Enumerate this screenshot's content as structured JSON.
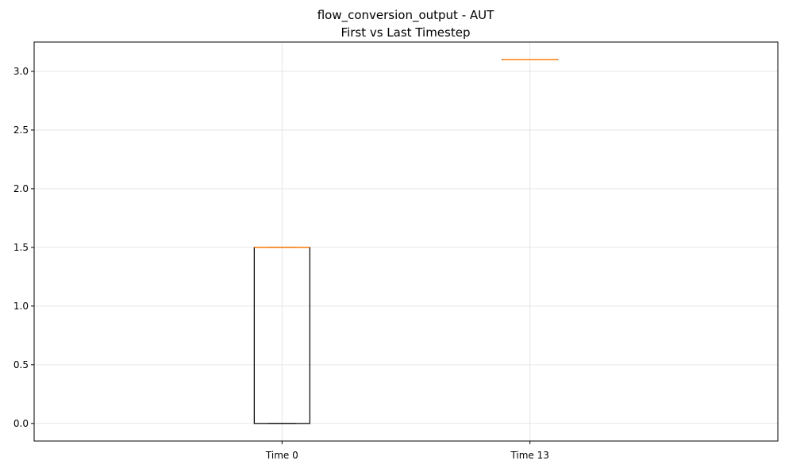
{
  "chart_data": {
    "type": "box",
    "title": "flow_conversion_output - AUT",
    "subtitle": "First vs Last Timestep",
    "xlabel": "",
    "ylabel": "",
    "categories": [
      "Time 0",
      "Time 13"
    ],
    "boxes": [
      {
        "category": "Time 0",
        "min": 0.0,
        "q1": 0.0,
        "median": 1.5,
        "q3": 1.5,
        "max": 1.5
      },
      {
        "category": "Time 13",
        "min": 3.1,
        "q1": 3.1,
        "median": 3.1,
        "q3": 3.1,
        "max": 3.1
      }
    ],
    "ylim": [
      -0.15,
      3.25
    ],
    "yticks": [
      0.0,
      0.5,
      1.0,
      1.5,
      2.0,
      2.5,
      3.0
    ],
    "ytick_labels": [
      "0.0",
      "0.5",
      "1.0",
      "1.5",
      "2.0",
      "2.5",
      "3.0"
    ],
    "grid": true,
    "colors": {
      "box": "#000000",
      "median": "#ff7f0e",
      "grid": "#e6e6e6"
    }
  }
}
